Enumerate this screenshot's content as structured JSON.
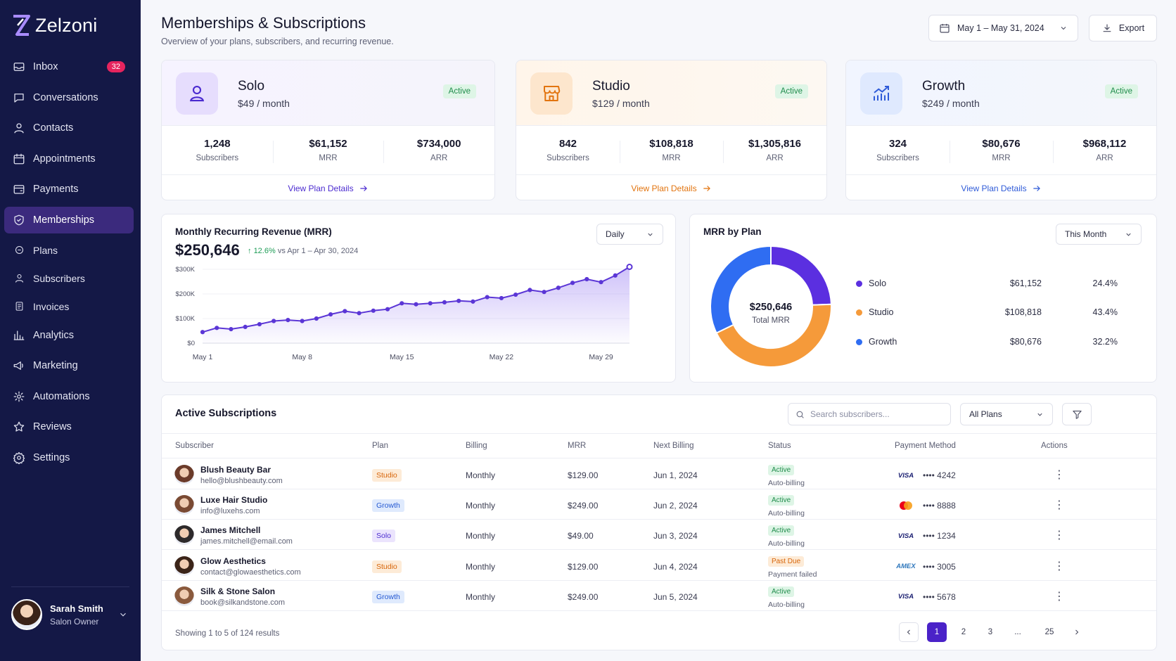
{
  "app": {
    "name": "Zelzoni"
  },
  "nav": {
    "inbox": {
      "label": "Inbox",
      "badge": "32"
    },
    "conversations": "Conversations",
    "contacts": "Contacts",
    "appointments": "Appointments",
    "payments": "Payments",
    "memberships": "Memberships",
    "plans": "Plans",
    "subscribers": "Subscribers",
    "invoices": "Invoices",
    "analytics": "Analytics",
    "marketing": "Marketing",
    "automations": "Automations",
    "reviews": "Reviews",
    "settings": "Settings"
  },
  "user": {
    "name": "Sarah Smith",
    "role": "Salon Owner"
  },
  "page": {
    "title": "Memberships & Subscriptions",
    "subtitle": "Overview of your plans, subscribers, and recurring revenue.",
    "date_range": "May 1 – May 31, 2024",
    "export": "Export"
  },
  "plans": [
    {
      "name": "Solo",
      "price": "$49 / month",
      "status": "Active",
      "subscribers": "1,248",
      "mrr": "$61,152",
      "arr": "$734,000",
      "link": "View Plan Details",
      "accent": "#4b2bd0"
    },
    {
      "name": "Studio",
      "price": "$129 / month",
      "status": "Active",
      "subscribers": "842",
      "mrr": "$108,818",
      "arr": "$1,305,816",
      "link": "View Plan Details",
      "accent": "#e2740f"
    },
    {
      "name": "Growth",
      "price": "$249 / month",
      "status": "Active",
      "subscribers": "324",
      "mrr": "$80,676",
      "arr": "$968,112",
      "link": "View Plan Details",
      "accent": "#2f5bd8"
    }
  ],
  "stat_labels": {
    "subscribers": "Subscribers",
    "mrr": "MRR",
    "arr": "ARR"
  },
  "mrr_card": {
    "title": "Monthly Recurring Revenue (MRR)",
    "value": "$250,646",
    "delta": "12.6%",
    "compare": "vs Apr 1 – Apr 30, 2024",
    "interval": "Daily"
  },
  "plan_card": {
    "title": "MRR by Plan",
    "period": "This Month",
    "total": "$250,646",
    "total_label": "Total MRR",
    "legend": [
      {
        "name": "Solo",
        "amount": "$61,152",
        "pct": "24.4%",
        "color": "#5b2fe0"
      },
      {
        "name": "Studio",
        "amount": "$108,818",
        "pct": "43.4%",
        "color": "#f59a3a"
      },
      {
        "name": "Growth",
        "amount": "$80,676",
        "pct": "32.2%",
        "color": "#2f6df2"
      }
    ]
  },
  "chart_data": [
    {
      "type": "area",
      "title": "Monthly Recurring Revenue (MRR)",
      "x": [
        "May 1",
        "May 2",
        "May 3",
        "May 4",
        "May 5",
        "May 6",
        "May 7",
        "May 8",
        "May 9",
        "May 10",
        "May 11",
        "May 12",
        "May 13",
        "May 14",
        "May 15",
        "May 16",
        "May 17",
        "May 18",
        "May 19",
        "May 20",
        "May 21",
        "May 22",
        "May 23",
        "May 24",
        "May 25",
        "May 26",
        "May 27",
        "May 28",
        "May 29",
        "May 30",
        "May 31"
      ],
      "y": [
        45000,
        62000,
        57000,
        66000,
        77000,
        90000,
        94000,
        90000,
        100000,
        117000,
        130000,
        122000,
        132000,
        138000,
        162000,
        158000,
        162000,
        166000,
        172000,
        169000,
        187000,
        183000,
        197000,
        216000,
        208000,
        225000,
        245000,
        260000,
        248000,
        275000,
        310000
      ],
      "yticks": [
        "$0",
        "$100K",
        "$200K",
        "$300K"
      ],
      "ylim": [
        0,
        300000
      ],
      "xticks": [
        "May 1",
        "May 8",
        "May 15",
        "May 22",
        "May 29"
      ]
    },
    {
      "type": "pie",
      "title": "MRR by Plan",
      "categories": [
        "Solo",
        "Studio",
        "Growth"
      ],
      "values": [
        61152,
        108818,
        80676
      ]
    }
  ],
  "table": {
    "title": "Active Subscriptions",
    "search_placeholder": "Search subscribers...",
    "filter": "All Plans",
    "columns": [
      "Subscriber",
      "Plan",
      "Billing",
      "MRR",
      "Next Billing",
      "Status",
      "Payment Method",
      "Actions"
    ],
    "rows": [
      {
        "name": "Blush Beauty Bar",
        "email": "hello@blushbeauty.com",
        "plan": "Studio",
        "billing": "Monthly",
        "mrr": "$129.00",
        "next": "Jun 1, 2024",
        "status": "Active",
        "status_sub": "Auto-billing",
        "card": "VISA",
        "last4": "•••• 4242"
      },
      {
        "name": "Luxe Hair Studio",
        "email": "info@luxehs.com",
        "plan": "Growth",
        "billing": "Monthly",
        "mrr": "$249.00",
        "next": "Jun 2, 2024",
        "status": "Active",
        "status_sub": "Auto-billing",
        "card": "mastercard-icon",
        "last4": "•••• 8888"
      },
      {
        "name": "James Mitchell",
        "email": "james.mitchell@email.com",
        "plan": "Solo",
        "billing": "Monthly",
        "mrr": "$49.00",
        "next": "Jun 3, 2024",
        "status": "Active",
        "status_sub": "Auto-billing",
        "card": "VISA",
        "last4": "•••• 1234"
      },
      {
        "name": "Glow Aesthetics",
        "email": "contact@glowaesthetics.com",
        "plan": "Studio",
        "billing": "Monthly",
        "mrr": "$129.00",
        "next": "Jun 4, 2024",
        "status": "Past Due",
        "status_sub": "Payment failed",
        "card": "AMEX",
        "last4": "•••• 3005"
      },
      {
        "name": "Silk & Stone Salon",
        "email": "book@silkandstone.com",
        "plan": "Growth",
        "billing": "Monthly",
        "mrr": "$249.00",
        "next": "Jun 5, 2024",
        "status": "Active",
        "status_sub": "Auto-billing",
        "card": "VISA",
        "last4": "•••• 5678"
      }
    ],
    "footer": "Showing 1 to 5 of 124 results",
    "pages": [
      "1",
      "2",
      "3",
      "...",
      "25"
    ]
  }
}
